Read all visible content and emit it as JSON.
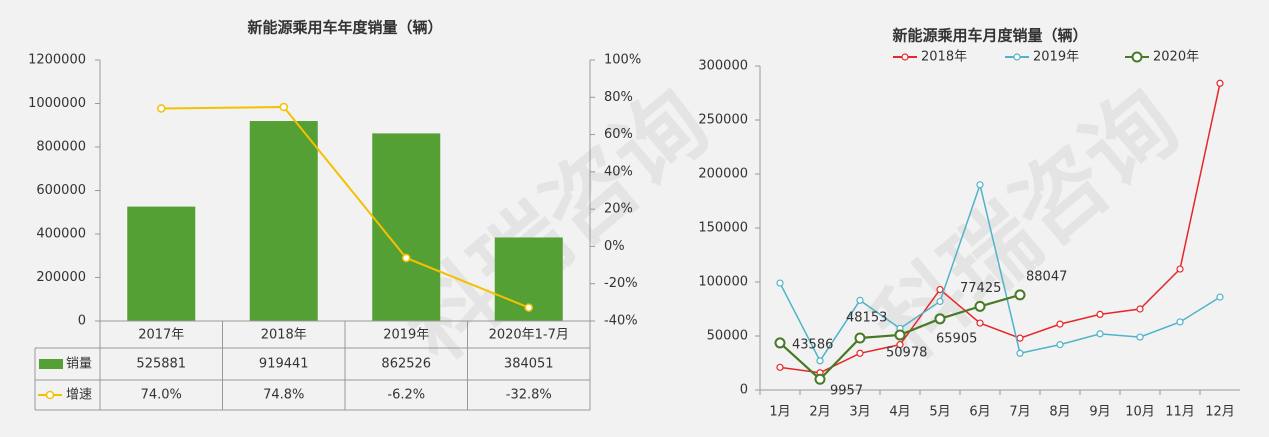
{
  "watermark": "科瑞咨询",
  "chart_data": [
    {
      "type": "bar_line",
      "title": "新能源乘用车年度销量（辆）",
      "categories": [
        "2017年",
        "2018年",
        "2019年",
        "2020年1-7月"
      ],
      "series": [
        {
          "name": "销量",
          "color": "#55a035",
          "values": [
            525881,
            919441,
            862526,
            384051
          ]
        },
        {
          "name": "增速",
          "color": "#f5c000",
          "axis": "y2",
          "values": [
            74.0,
            74.8,
            -6.2,
            -32.8
          ],
          "value_labels": [
            "74.0%",
            "74.8%",
            "-6.2%",
            "-32.8%"
          ]
        }
      ],
      "ylim": [
        0,
        1200000
      ],
      "yticks": [
        0,
        200000,
        400000,
        600000,
        800000,
        1000000,
        1200000
      ],
      "y2lim": [
        -40,
        100
      ],
      "y2ticks": [
        {
          "value": -40,
          "label": "-40%"
        },
        {
          "value": -20,
          "label": "-20%"
        },
        {
          "value": 0,
          "label": "0%"
        },
        {
          "value": 20,
          "label": "20%"
        },
        {
          "value": 40,
          "label": "40%"
        },
        {
          "value": 60,
          "label": "60%"
        },
        {
          "value": 80,
          "label": "80%"
        },
        {
          "value": 100,
          "label": "100%"
        }
      ]
    },
    {
      "type": "line",
      "title": "新能源乘用车月度销量（辆）",
      "categories": [
        "1月",
        "2月",
        "3月",
        "4月",
        "5月",
        "6月",
        "7月",
        "8月",
        "9月",
        "10月",
        "11月",
        "12月"
      ],
      "series": [
        {
          "name": "2018年",
          "color": "#e8262a",
          "values": [
            21000,
            16000,
            34000,
            42000,
            93000,
            62000,
            48000,
            61000,
            70000,
            75000,
            112000,
            284000
          ]
        },
        {
          "name": "2019年",
          "color": "#4fb3c9",
          "values": [
            99000,
            27000,
            83000,
            57000,
            82000,
            190000,
            34000,
            42000,
            52000,
            49000,
            63000,
            86000
          ]
        },
        {
          "name": "2020年",
          "color": "#467a25",
          "values": [
            43586,
            9957,
            48153,
            50978,
            65905,
            77425,
            88047,
            null,
            null,
            null,
            null,
            null
          ],
          "data_labels": true
        }
      ],
      "ylim": [
        0,
        300000
      ],
      "yticks": [
        0,
        50000,
        100000,
        150000,
        200000,
        250000,
        300000
      ]
    }
  ]
}
